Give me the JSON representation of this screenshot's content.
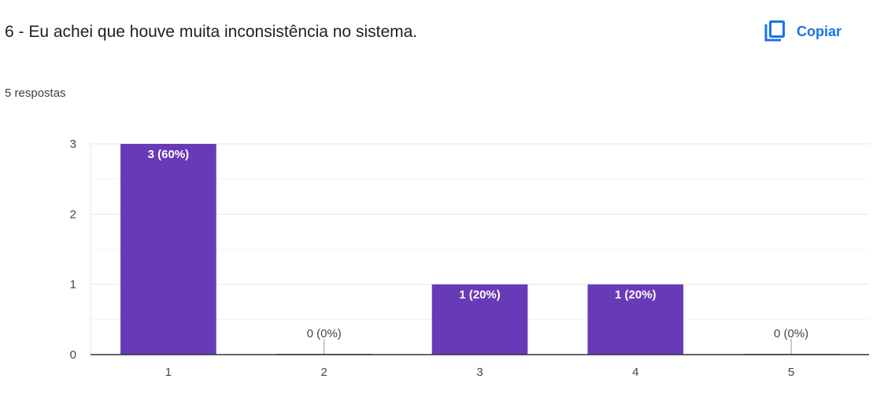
{
  "question": {
    "title": "6 - Eu achei que houve muita inconsistência no sistema.",
    "copy_label": "Copiar",
    "copy_icon": "copy-icon",
    "response_count": "5 respostas"
  },
  "colors": {
    "bar": "#673ab7",
    "accent": "#1a73e8",
    "grid": "#ebebeb",
    "axis": "#333333"
  },
  "chart_data": {
    "type": "bar",
    "categories": [
      "1",
      "2",
      "3",
      "4",
      "5"
    ],
    "values": [
      3,
      0,
      1,
      1,
      0
    ],
    "data_labels": [
      "3 (60%)",
      "0 (0%)",
      "1 (20%)",
      "1 (20%)",
      "0 (0%)"
    ],
    "y_ticks": [
      0,
      1,
      2,
      3
    ],
    "ylim": [
      0,
      3
    ],
    "grid": true,
    "legend": "none"
  }
}
